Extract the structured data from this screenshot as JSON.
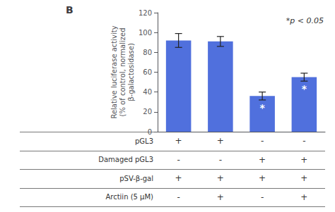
{
  "chart_data": {
    "type": "bar",
    "title": "B",
    "categories": [
      null,
      null,
      null,
      null
    ],
    "values": [
      92,
      91,
      36,
      55
    ],
    "errors": [
      7,
      5,
      4,
      4
    ],
    "significance": [
      null,
      null,
      "*",
      "*"
    ],
    "annotation": "*p < 0.05",
    "ylabel": "Relative luciferase activity\n(% of control, normalized\nβ-galactosidase)",
    "ylim": [
      0,
      120
    ],
    "yticks": [
      0,
      20,
      40,
      60,
      80,
      100,
      120
    ],
    "grid": false,
    "tick_labels": "y",
    "table": {
      "rows": [
        {
          "label": "pGL3",
          "values": [
            "+",
            "+",
            "-",
            "-"
          ]
        },
        {
          "label": "Damaged pGL3",
          "values": [
            "-",
            "-",
            "+",
            "+"
          ]
        },
        {
          "label": "pSV-β-gal",
          "values": [
            "+",
            "+",
            "+",
            "+"
          ]
        },
        {
          "label": "Arctiin (5 μM)",
          "values": [
            "-",
            "+",
            "-",
            "+"
          ]
        }
      ]
    }
  }
}
